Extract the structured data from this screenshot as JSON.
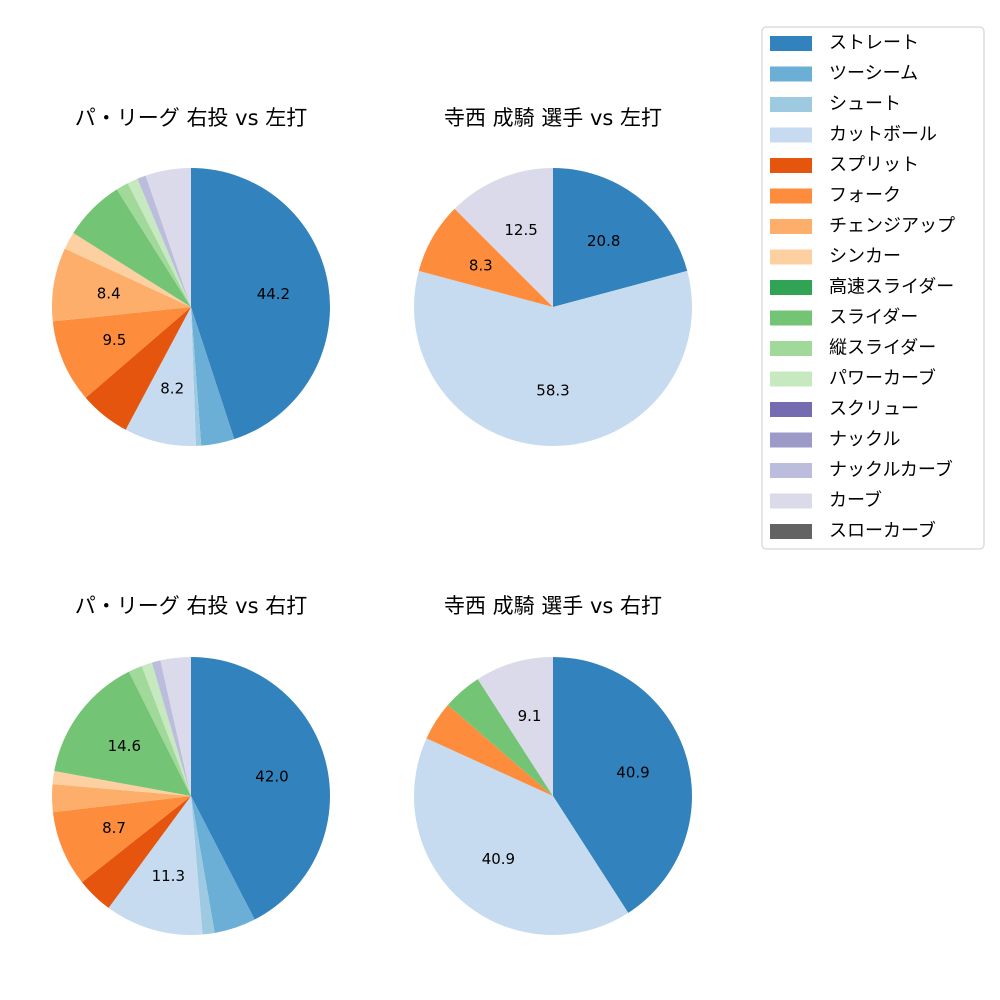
{
  "colors": {
    "ストレート": "#3182bd",
    "ツーシーム": "#6baed6",
    "シュート": "#9ecae1",
    "カットボール": "#c6dbef",
    "スプリット": "#e6550d",
    "フォーク": "#fd8d3c",
    "チェンジアップ": "#fdae6b",
    "シンカー": "#fdd0a2",
    "高速スライダー": "#31a354",
    "スライダー": "#74c476",
    "縦スライダー": "#a1d99b",
    "パワーカーブ": "#c7e9c0",
    "スクリュー": "#756bb1",
    "ナックル": "#9e9ac8",
    "ナックルカーブ": "#bcbddc",
    "カーブ": "#dadaeb",
    "スローカーブ": "#636363"
  },
  "legend": {
    "items": [
      "ストレート",
      "ツーシーム",
      "シュート",
      "カットボール",
      "スプリット",
      "フォーク",
      "チェンジアップ",
      "シンカー",
      "高速スライダー",
      "スライダー",
      "縦スライダー",
      "パワーカーブ",
      "スクリュー",
      "ナックル",
      "ナックルカーブ",
      "カーブ",
      "スローカーブ"
    ]
  },
  "chart_data": [
    {
      "type": "pie",
      "title": "パ・リーグ 右投 vs 左打",
      "start": "top",
      "direction": "clockwise",
      "slices": [
        {
          "name": "ストレート",
          "value": 44.2,
          "label": "44.2"
        },
        {
          "name": "ツーシーム",
          "value": 3.8
        },
        {
          "name": "シュート",
          "value": 0.6
        },
        {
          "name": "カットボール",
          "value": 8.2,
          "label": "8.2"
        },
        {
          "name": "スプリット",
          "value": 5.8
        },
        {
          "name": "フォーク",
          "value": 9.5,
          "label": "9.5"
        },
        {
          "name": "チェンジアップ",
          "value": 8.4,
          "label": "8.4"
        },
        {
          "name": "シンカー",
          "value": 2.0
        },
        {
          "name": "スライダー",
          "value": 7.0
        },
        {
          "name": "縦スライダー",
          "value": 1.4
        },
        {
          "name": "パワーカーブ",
          "value": 1.2
        },
        {
          "name": "ナックルカーブ",
          "value": 1.0
        },
        {
          "name": "カーブ",
          "value": 5.2
        }
      ]
    },
    {
      "type": "pie",
      "title": "寺西 成騎 選手 vs 左打",
      "start": "top",
      "direction": "clockwise",
      "slices": [
        {
          "name": "ストレート",
          "value": 20.8,
          "label": "20.8"
        },
        {
          "name": "カットボール",
          "value": 58.3,
          "label": "58.3"
        },
        {
          "name": "フォーク",
          "value": 8.3,
          "label": "8.3"
        },
        {
          "name": "カーブ",
          "value": 12.5,
          "label": "12.5"
        }
      ]
    },
    {
      "type": "pie",
      "title": "パ・リーグ 右投 vs 右打",
      "start": "top",
      "direction": "clockwise",
      "slices": [
        {
          "name": "ストレート",
          "value": 42.0,
          "label": "42.0"
        },
        {
          "name": "ツーシーム",
          "value": 4.8
        },
        {
          "name": "シュート",
          "value": 1.4
        },
        {
          "name": "カットボール",
          "value": 11.3,
          "label": "11.3"
        },
        {
          "name": "スプリット",
          "value": 4.2
        },
        {
          "name": "フォーク",
          "value": 8.7,
          "label": "8.7"
        },
        {
          "name": "チェンジアップ",
          "value": 3.2
        },
        {
          "name": "シンカー",
          "value": 1.5
        },
        {
          "name": "スライダー",
          "value": 14.6,
          "label": "14.6"
        },
        {
          "name": "縦スライダー",
          "value": 1.6
        },
        {
          "name": "パワーカーブ",
          "value": 1.2
        },
        {
          "name": "ナックルカーブ",
          "value": 1.0
        },
        {
          "name": "カーブ",
          "value": 3.5
        }
      ]
    },
    {
      "type": "pie",
      "title": "寺西 成騎 選手 vs 右打",
      "start": "top",
      "direction": "clockwise",
      "slices": [
        {
          "name": "ストレート",
          "value": 40.9,
          "label": "40.9"
        },
        {
          "name": "カットボール",
          "value": 40.9,
          "label": "40.9"
        },
        {
          "name": "フォーク",
          "value": 4.55
        },
        {
          "name": "スライダー",
          "value": 4.55
        },
        {
          "name": "カーブ",
          "value": 9.1,
          "label": "9.1"
        }
      ]
    }
  ]
}
